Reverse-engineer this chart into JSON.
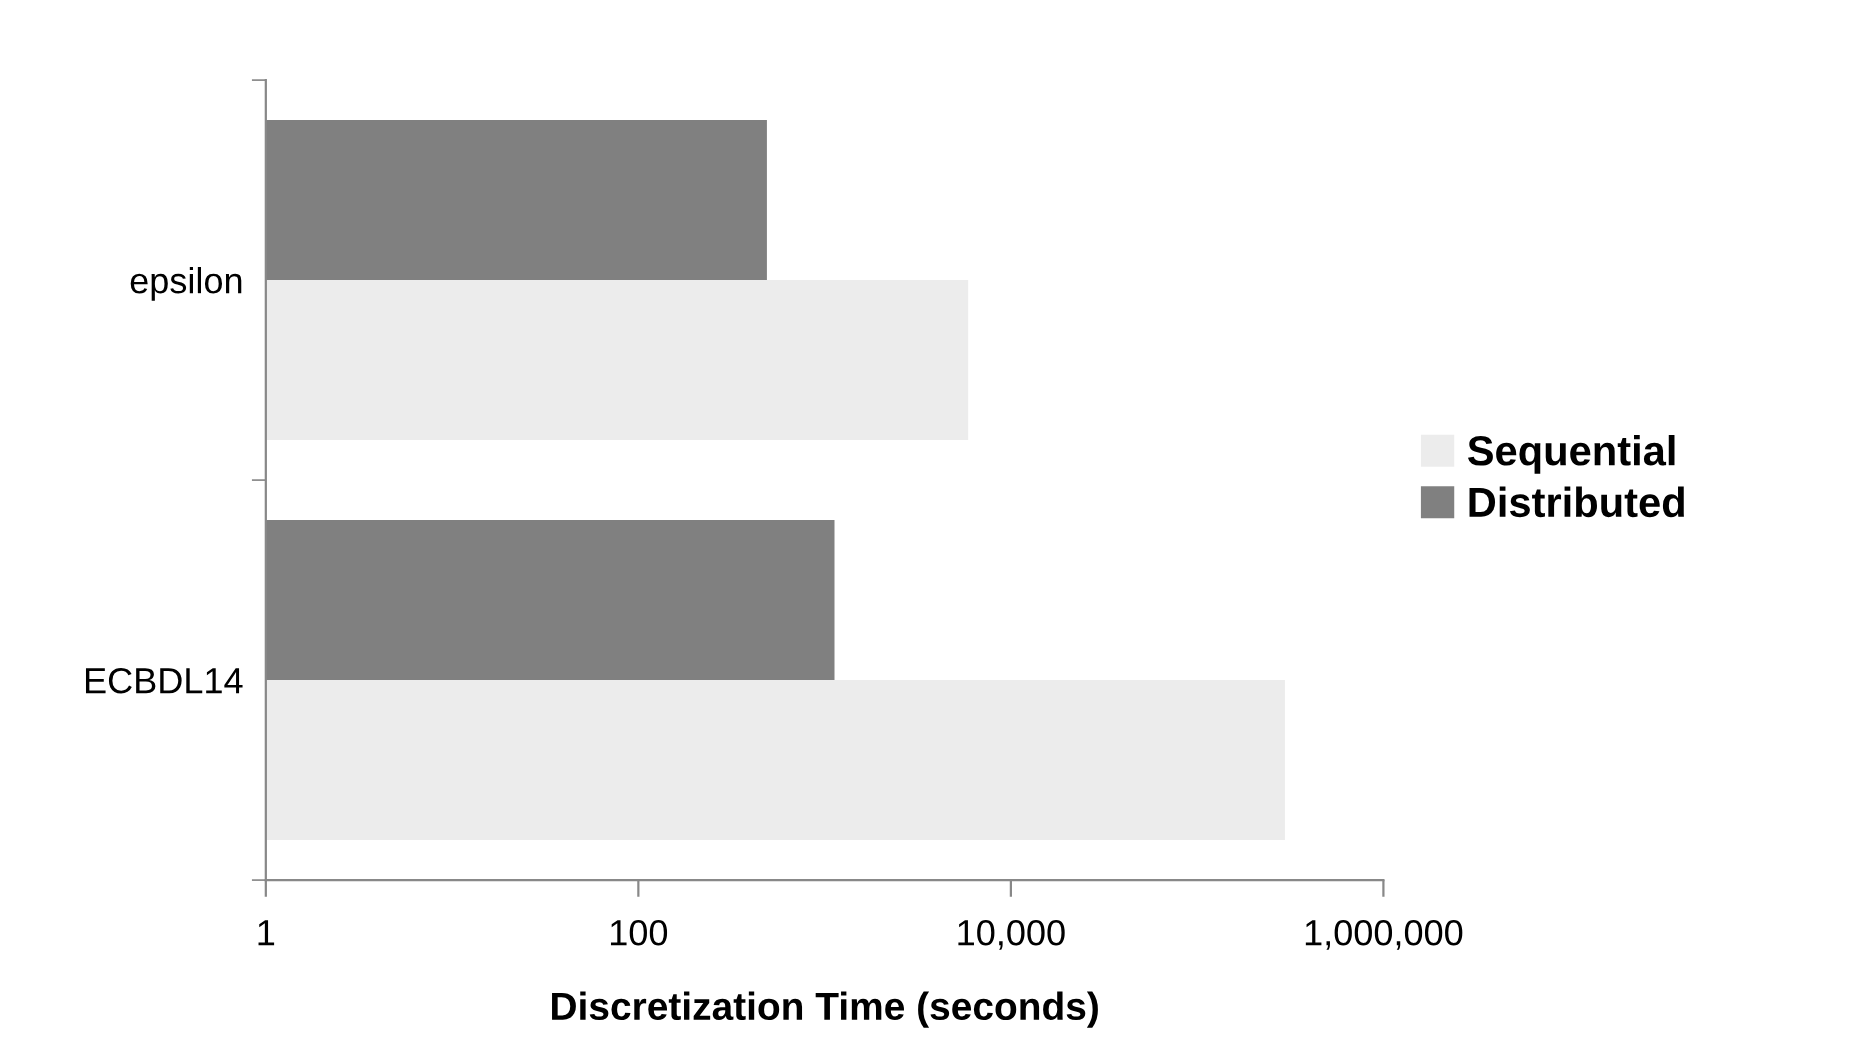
{
  "chart_data": {
    "type": "bar",
    "orientation": "horizontal",
    "categories": [
      "epsilon",
      "ECBDL14"
    ],
    "series": [
      {
        "name": "Sequential",
        "color": "#ececec",
        "values": [
          5900,
          296000
        ]
      },
      {
        "name": "Distributed",
        "color": "#808080",
        "values": [
          490,
          1130
        ]
      }
    ],
    "xlabel": "Discretization Time (seconds)",
    "log": "x",
    "xlim": [
      1,
      1000000
    ],
    "xticks": [
      1,
      100,
      {
        "value": 10000,
        "label": "10,000"
      },
      {
        "value": 1000000,
        "label": "1,000,000"
      }
    ],
    "grid": false,
    "legend": "right"
  }
}
